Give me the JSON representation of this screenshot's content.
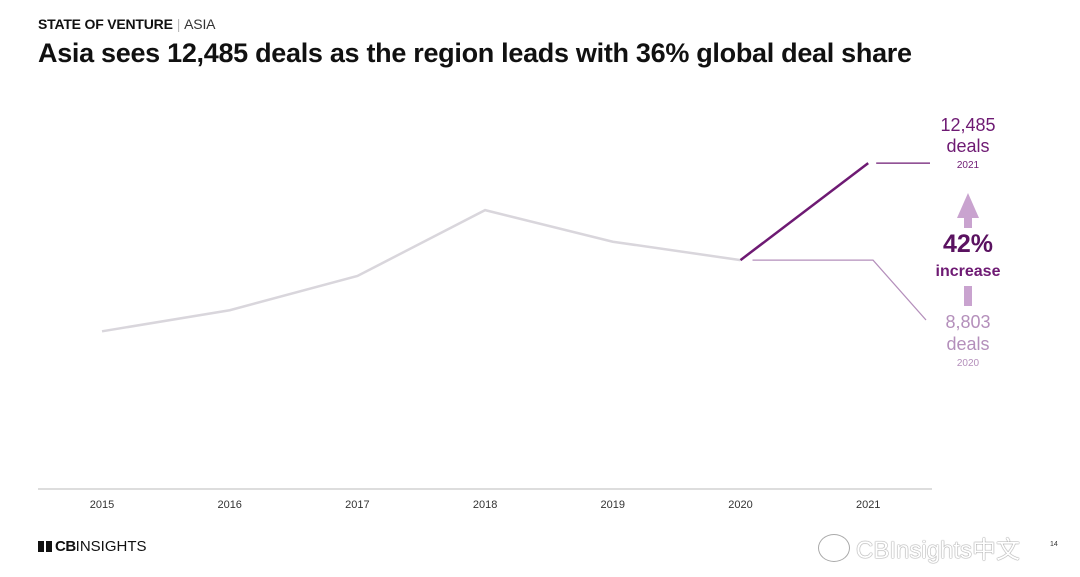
{
  "header": {
    "kicker": "STATE OF VENTURE",
    "kicker_sep": "|",
    "kicker_sub": "ASIA",
    "title": "Asia sees 12,485 deals as the region leads with 36% global deal share"
  },
  "chart_data": {
    "type": "line",
    "categories": [
      "2015",
      "2016",
      "2017",
      "2018",
      "2019",
      "2020",
      "2021"
    ],
    "series": [
      {
        "values": [
          6100,
          6900,
          8200,
          10700,
          9500,
          8803,
          12485
        ]
      }
    ],
    "highlight_segment": [
      "2020",
      "2021"
    ],
    "colors": {
      "base": "#d9d6dc",
      "highlight": "#6e1a73",
      "light": "#b48fbb",
      "arrow": "#c9a3cf"
    },
    "grid": false,
    "annotations": {
      "top": {
        "value": "12,485",
        "unit": "deals",
        "year": "2021"
      },
      "bottom": {
        "value": "8,803",
        "unit": "deals",
        "year": "2020"
      },
      "change": {
        "value": "42%",
        "label": "increase"
      }
    }
  },
  "footer": {
    "logo": "CBINSIGHTS",
    "page": "14",
    "watermark": "CBInsights中文"
  }
}
